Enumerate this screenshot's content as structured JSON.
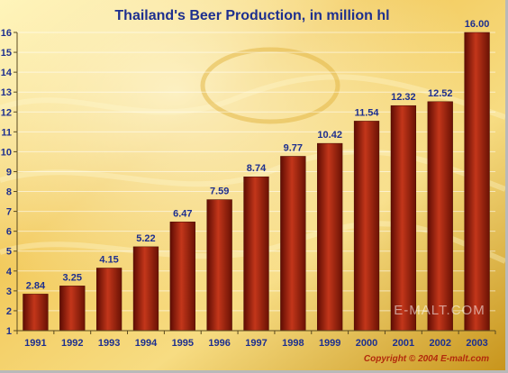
{
  "chart_data": {
    "type": "bar",
    "title": "Thailand's Beer Production, in million hl",
    "categories": [
      "1991",
      "1992",
      "1993",
      "1994",
      "1995",
      "1996",
      "1997",
      "1998",
      "1999",
      "2000",
      "2001",
      "2002",
      "2003"
    ],
    "values": [
      2.84,
      3.25,
      4.15,
      5.22,
      6.47,
      7.59,
      8.74,
      9.77,
      10.42,
      11.54,
      12.32,
      12.52,
      16.0
    ],
    "value_labels": [
      "2.84",
      "3.25",
      "4.15",
      "5.22",
      "6.47",
      "7.59",
      "8.74",
      "9.77",
      "10.42",
      "11.54",
      "12.32",
      "12.52",
      "16.00"
    ],
    "ylim": [
      1,
      16
    ],
    "yticks": [
      1,
      2,
      3,
      4,
      5,
      6,
      7,
      8,
      9,
      10,
      11,
      12,
      13,
      14,
      15,
      16
    ],
    "xlabel": "",
    "ylabel": "",
    "grid": true,
    "legend": "none"
  },
  "watermark": "E-MALT.COM",
  "copyright": "Copyright © 2004 E-malt.com",
  "colors": {
    "title": "#1d2f8f",
    "bar_light": "#c3361a",
    "bar_dark": "#5e0c03",
    "background_light": "#fff2a6",
    "background_dark": "#c89418",
    "copyright": "#b22a0c"
  }
}
